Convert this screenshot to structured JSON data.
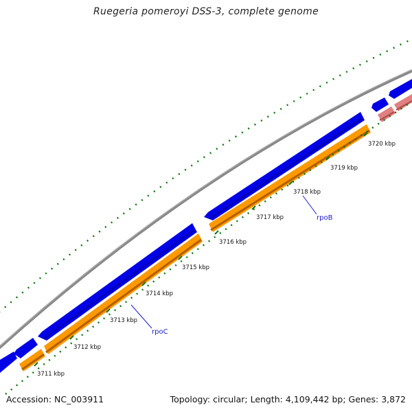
{
  "title": "Ruegeria pomeroyi DSS-3, complete genome",
  "footer": {
    "accession": "Accession: NC_003911",
    "summary": "Topology: circular; Length: 4,109,442 bp; Genes: 3,872"
  },
  "ticks": [
    "3711 kbp",
    "3712 kbp",
    "3713 kbp",
    "3714 kbp",
    "3715 kbp",
    "3716 kbp",
    "3717 kbp",
    "3718 kbp",
    "3719 kbp",
    "3720 kbp"
  ],
  "gene_labels": [
    "rpoC",
    "rpoB"
  ],
  "colors": {
    "backbone": "#888888",
    "forward_gene": "#0000e6",
    "cds": "#ff9900",
    "cds_shadow": "#b35f00",
    "rna_gene": "#e08080",
    "tick": "#117711",
    "label": "#1a1acc"
  }
}
